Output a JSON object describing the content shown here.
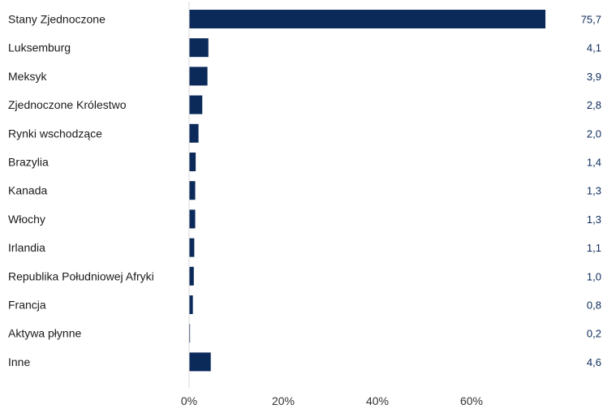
{
  "chart_data": {
    "type": "bar",
    "orientation": "horizontal",
    "categories": [
      "Stany Zjednoczone",
      "Luksemburg",
      "Meksyk",
      "Zjednoczone Królestwo",
      "Rynki wschodzące",
      "Brazylia",
      "Kanada",
      "Włochy",
      "Irlandia",
      "Republika Południowej Afryki",
      "Francja",
      "Aktywa płynne",
      "Inne"
    ],
    "values": [
      75.7,
      4.1,
      3.9,
      2.8,
      2.0,
      1.4,
      1.3,
      1.3,
      1.1,
      1.0,
      0.8,
      0.2,
      4.6
    ],
    "value_labels": [
      "75,7",
      "4,1",
      "3,9",
      "2,8",
      "2,0",
      "1,4",
      "1,3",
      "1,3",
      "1,1",
      "1,0",
      "0,8",
      "0,2",
      "4,6"
    ],
    "x_ticks": [
      0,
      20,
      40,
      60
    ],
    "x_tick_labels": [
      "0%",
      "20%",
      "40%",
      "60%"
    ],
    "xlim": [
      0,
      80
    ],
    "grid": false,
    "legend": "none",
    "title": "",
    "xlabel": "",
    "ylabel": "",
    "bar_color": "#0b2a5a",
    "label_color": "#1a1a1a",
    "value_label_color": "#0b2a5a",
    "axis_color": "#d9d9d9"
  }
}
